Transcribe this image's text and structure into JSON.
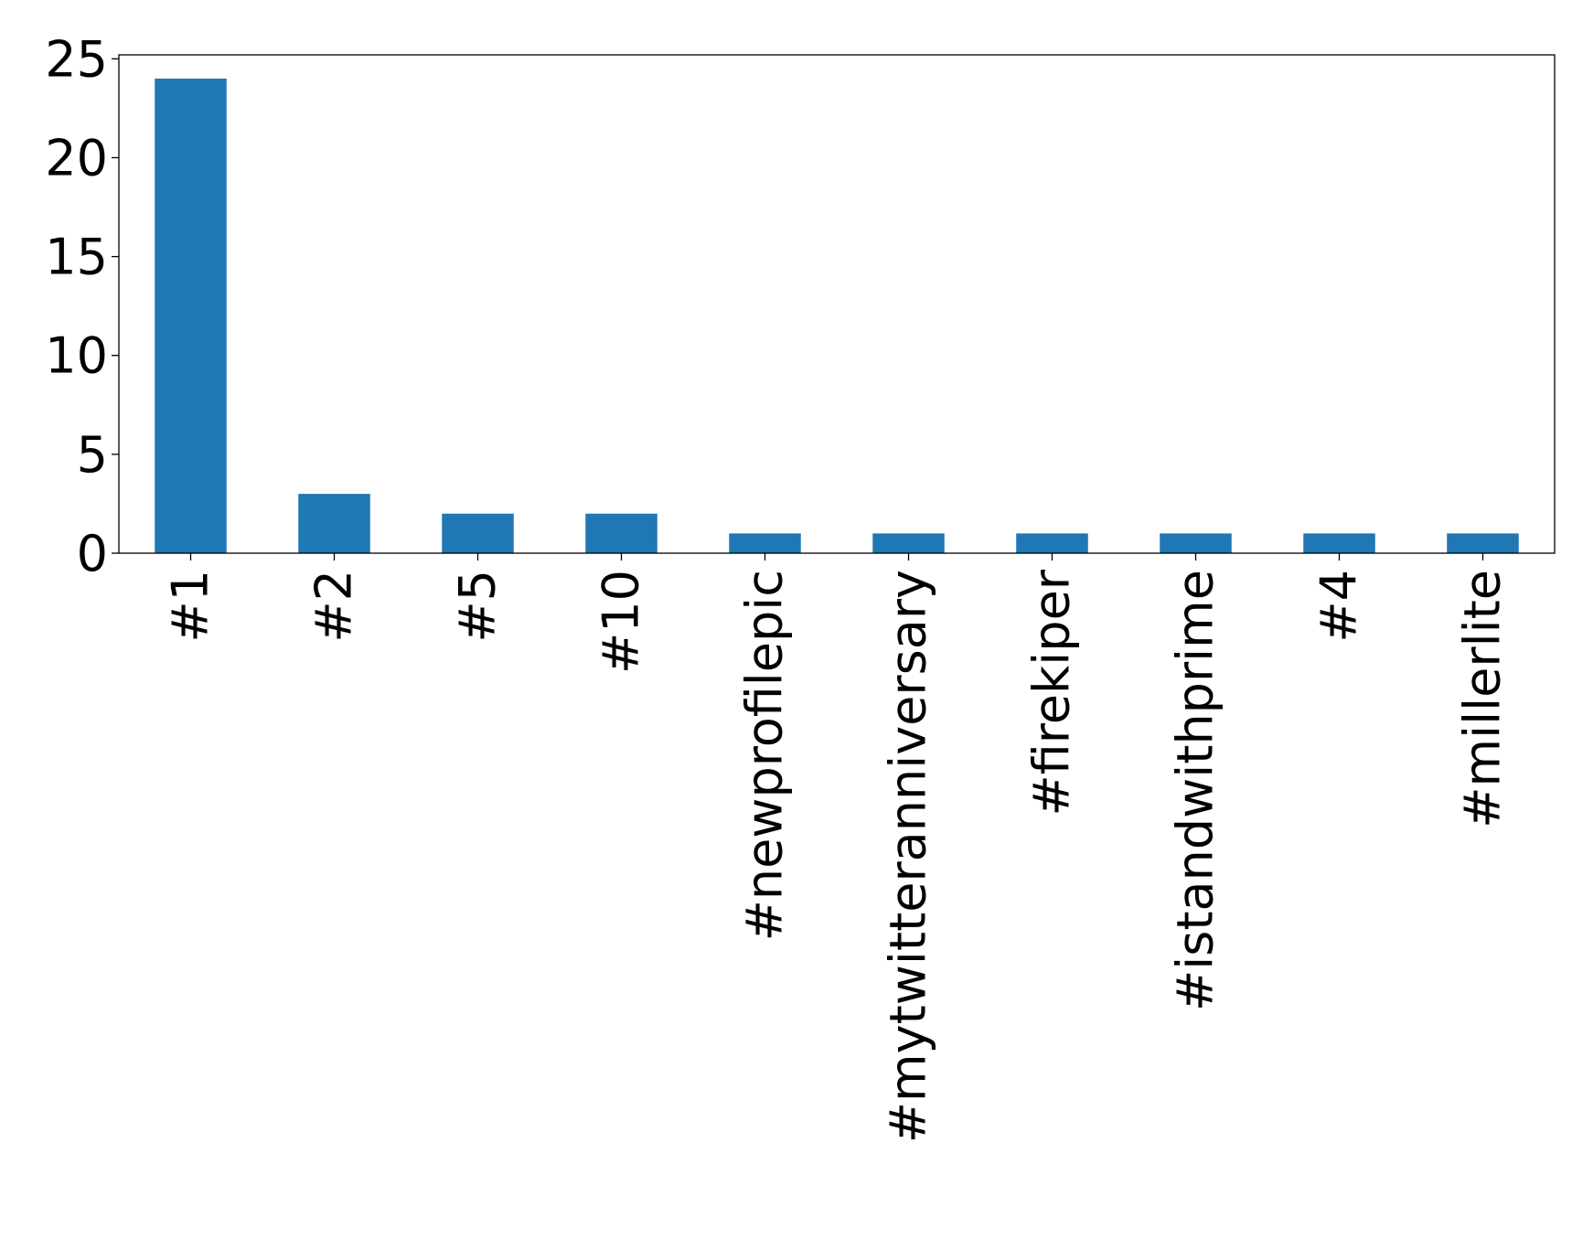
{
  "chart_data": {
    "type": "bar",
    "title": "",
    "xlabel": "",
    "ylabel": "",
    "categories": [
      "#1",
      "#2",
      "#5",
      "#10",
      "#newprofilepic",
      "#mytwitteranniversary",
      "#firekiper",
      "#istandwithprime",
      "#4",
      "#millerlite"
    ],
    "values": [
      24,
      3,
      2,
      2,
      1,
      1,
      1,
      1,
      1,
      1
    ],
    "ylim": [
      0,
      25.2
    ],
    "yticks": [
      0,
      5,
      10,
      15,
      20,
      25
    ],
    "grid": false,
    "legend": "none",
    "bar_color": "#1f77b4",
    "axis_color": "#000000"
  }
}
